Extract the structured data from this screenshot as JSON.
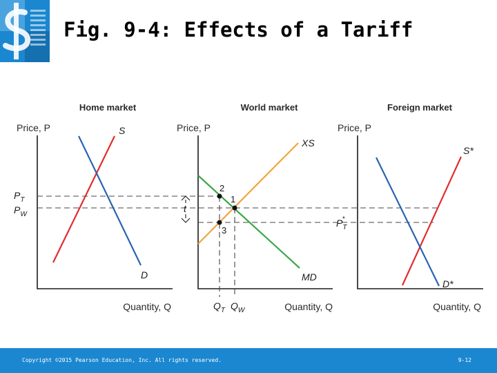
{
  "slide": {
    "title": "Fig. 9-4: Effects of a Tariff"
  },
  "logo": {
    "icon": "dollar-sign-icon"
  },
  "diagram": {
    "home": {
      "title": "Home market",
      "price_axis": "Price, P",
      "quantity_axis": "Quantity, Q",
      "supply": "S",
      "demand": "D",
      "pt_main": "P",
      "pt_sub": "T",
      "pw_main": "P",
      "pw_sub": "W"
    },
    "world": {
      "title": "World market",
      "price_axis": "Price, P",
      "quantity_axis": "Quantity, Q",
      "export_supply": "XS",
      "import_demand": "MD",
      "tariff": "t",
      "point1": "1",
      "point2": "2",
      "point3": "3",
      "qt_main": "Q",
      "qt_sub": "T",
      "qw_main": "Q",
      "qw_sub": "W"
    },
    "foreign": {
      "title": "Foreign market",
      "price_axis": "Price, P",
      "quantity_axis": "Quantity, Q",
      "supply": "S*",
      "demand": "D*",
      "ptstar_main": "P",
      "ptstar_sub": "T",
      "ptstar_star": "*"
    }
  },
  "footer": {
    "copyright": "Copyright ©2015 Pearson Education, Inc. All rights reserved.",
    "slide_number": "9-12"
  },
  "colors": {
    "supply": "#e32b2b",
    "demand": "#2a63b0",
    "export_supply": "#f5a23c",
    "import_demand": "#3aa648",
    "footer_band": "#1b87d0",
    "logo": "#1b87d0"
  }
}
